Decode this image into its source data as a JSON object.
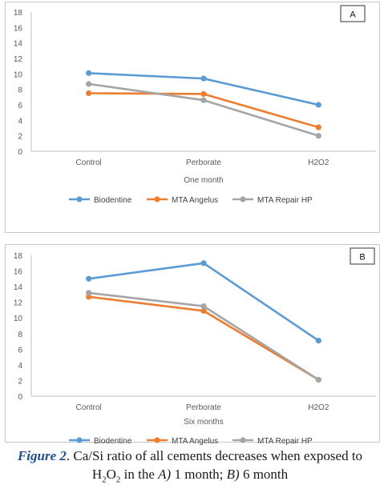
{
  "chart_data": [
    {
      "type": "line",
      "panel_label": "A",
      "categories": [
        "Control",
        "Perborate",
        "H2O2"
      ],
      "xlabel": "One month",
      "ylabel": "",
      "ylim": [
        0,
        18
      ],
      "yticks": [
        0,
        2,
        4,
        6,
        8,
        10,
        12,
        14,
        16,
        18
      ],
      "grid": false,
      "legend": "bottom",
      "series": [
        {
          "name": "Biodentine",
          "values": [
            10.1,
            9.4,
            6.0
          ],
          "color": "#5b9bd5"
        },
        {
          "name": "MTA Angelus",
          "values": [
            7.5,
            7.4,
            3.1
          ],
          "color": "#ed7d31"
        },
        {
          "name": "MTA Repair HP",
          "values": [
            8.7,
            6.6,
            2.0
          ],
          "color": "#a5a5a5"
        }
      ]
    },
    {
      "type": "line",
      "panel_label": "B",
      "categories": [
        "Control",
        "Perborate",
        "H2O2"
      ],
      "xlabel": "Six months",
      "ylabel": "",
      "ylim": [
        0,
        18
      ],
      "yticks": [
        0,
        2,
        4,
        6,
        8,
        10,
        12,
        14,
        16,
        18
      ],
      "grid": false,
      "legend": "bottom",
      "series": [
        {
          "name": "Biodentine",
          "values": [
            15.0,
            17.0,
            7.1
          ],
          "color": "#5b9bd5"
        },
        {
          "name": "MTA Angelus",
          "values": [
            12.7,
            10.9,
            2.1
          ],
          "color": "#ed7d31"
        },
        {
          "name": "MTA Repair HP",
          "values": [
            13.2,
            11.5,
            2.1
          ],
          "color": "#a5a5a5"
        }
      ]
    }
  ],
  "caption": {
    "label": "Figure 2",
    "line1_rest": ". Ca/Si ratio of all cements decreases when exposed to",
    "h": "H",
    "sub2a": "2",
    "o": "O",
    "sub2b": "2",
    "in_the": " in the ",
    "a": "A)",
    "one_month": " 1 month; ",
    "b": "B)",
    "six_month": " 6 month"
  }
}
